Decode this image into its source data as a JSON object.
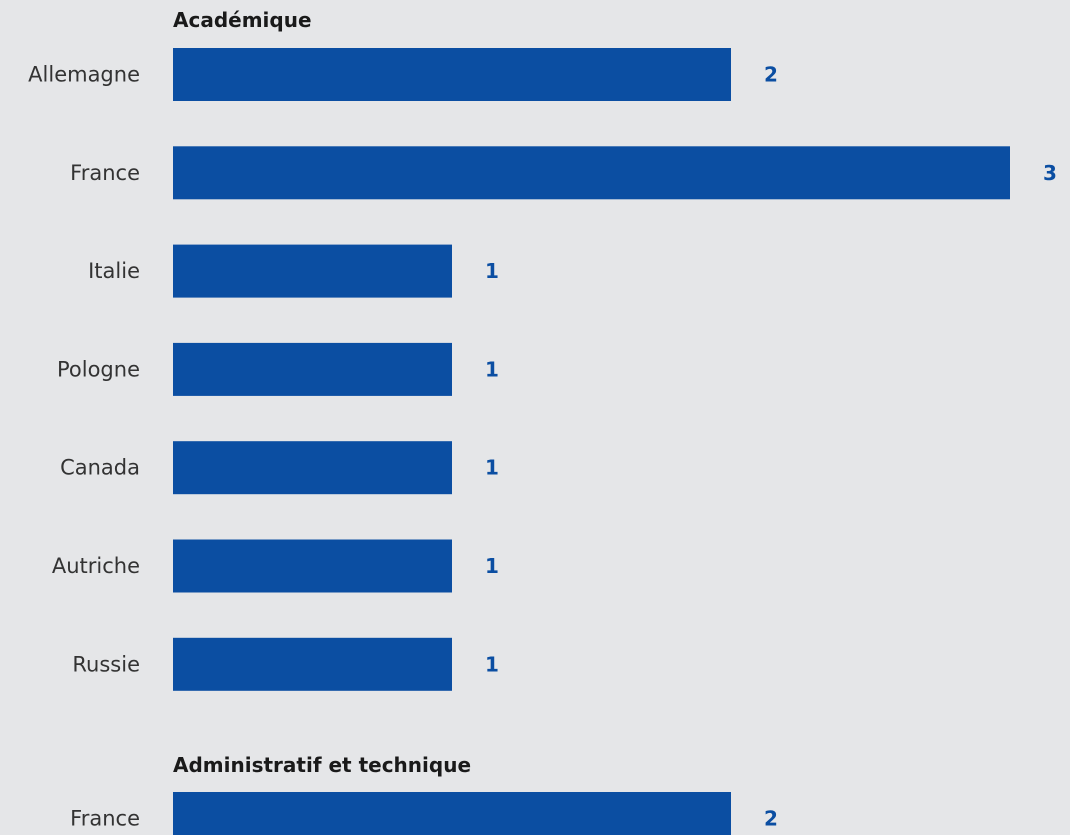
{
  "colors": {
    "bar": "#0b4ea2",
    "value_label": "#0b4ea2",
    "background": "#e5e6e8"
  },
  "chart_data": {
    "type": "bar",
    "orientation": "horizontal",
    "xlim": [
      0,
      3
    ],
    "grid": false,
    "groups": [
      {
        "title": "Académique",
        "categories": [
          "Allemagne",
          "France",
          "Italie",
          "Pologne",
          "Canada",
          "Autriche",
          "Russie"
        ],
        "values": [
          2,
          3,
          1,
          1,
          1,
          1,
          1
        ]
      },
      {
        "title": "Administratif et technique",
        "categories": [
          "France"
        ],
        "values": [
          2
        ]
      }
    ]
  }
}
